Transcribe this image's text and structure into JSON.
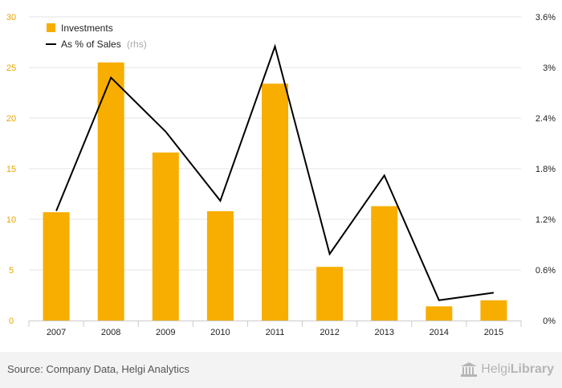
{
  "chart_data": {
    "type": "bar",
    "categories": [
      "2007",
      "2008",
      "2009",
      "2010",
      "2011",
      "2012",
      "2013",
      "2014",
      "2015"
    ],
    "series": [
      {
        "name": "Investments",
        "type": "bar",
        "axis": "left",
        "color": "#f7ae00",
        "values": [
          10.7,
          25.5,
          16.6,
          10.8,
          23.4,
          5.3,
          11.3,
          1.4,
          2.0
        ]
      },
      {
        "name": "As % of Sales",
        "name_suffix": "(rhs)",
        "type": "line",
        "axis": "right",
        "color": "#000000",
        "values": [
          1.3,
          2.88,
          2.24,
          1.42,
          3.25,
          0.79,
          1.72,
          0.24,
          0.33
        ]
      }
    ],
    "yaxis_left": {
      "min": 0,
      "max": 30,
      "ticks": [
        "0",
        "5",
        "10",
        "15",
        "20",
        "25",
        "30"
      ]
    },
    "yaxis_right": {
      "min": 0,
      "max": 3.6,
      "ticks": [
        "0%",
        "0.6%",
        "1.2%",
        "1.8%",
        "2.4%",
        "3%",
        "3.6%"
      ]
    },
    "grid": true,
    "legend": "top-left"
  },
  "footer": {
    "source": "Source: Company Data, Helgi Analytics",
    "logo_regular": "Helgi",
    "logo_bold": "Library"
  }
}
